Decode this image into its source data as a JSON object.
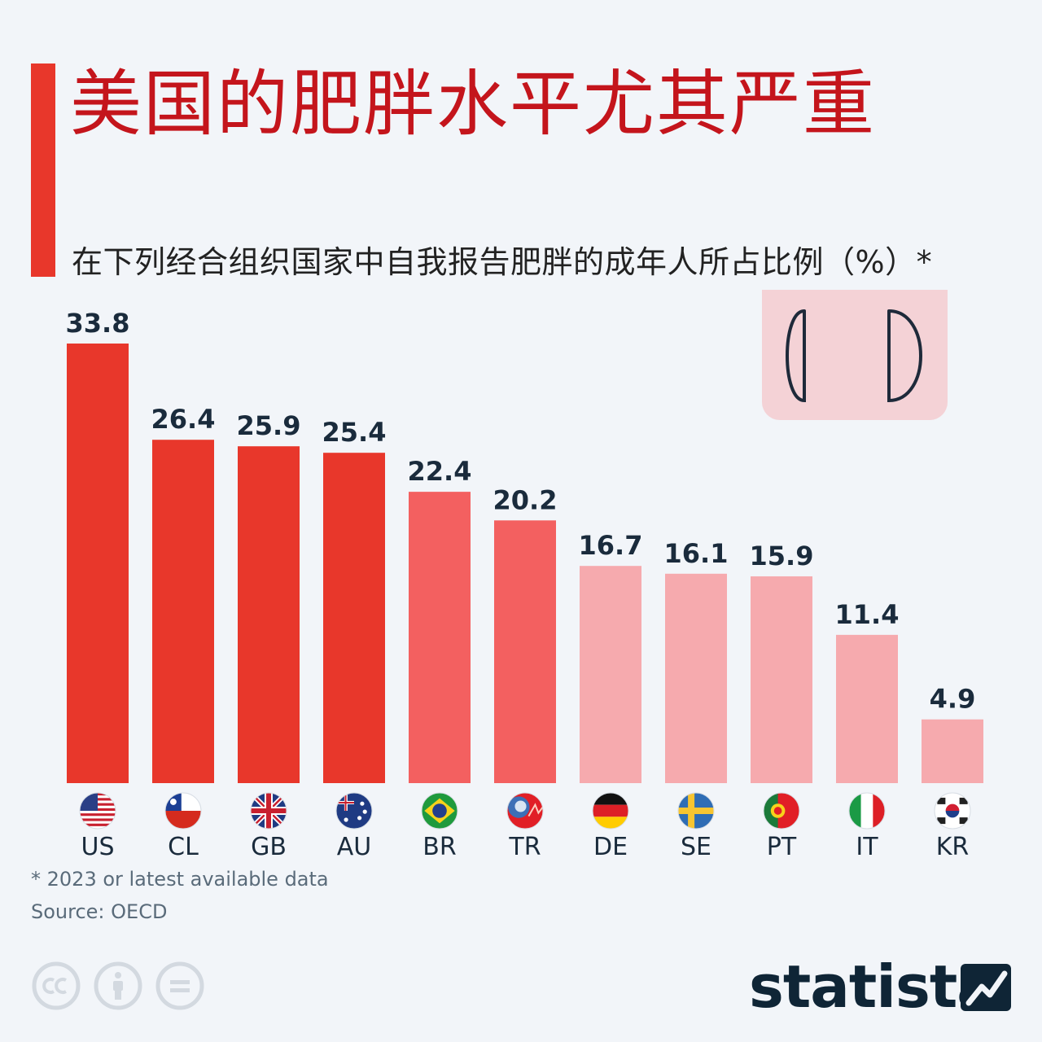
{
  "header": {
    "title": "美国的肥胖水平尤其严重",
    "subtitle": "在下列经合组织国家中自我报告肥胖的成年人所占比例（%）*"
  },
  "chart_data": {
    "type": "bar",
    "categories": [
      "US",
      "CL",
      "GB",
      "AU",
      "BR",
      "TR",
      "DE",
      "SE",
      "PT",
      "IT",
      "KR"
    ],
    "values": [
      33.8,
      26.4,
      25.9,
      25.4,
      22.4,
      20.2,
      16.7,
      16.1,
      15.9,
      11.4,
      4.9
    ],
    "value_labels": [
      "33.8",
      "26.4",
      "25.9",
      "25.4",
      "22.4",
      "20.2",
      "16.7",
      "16.1",
      "15.9",
      "11.4",
      "4.9"
    ],
    "ylim": [
      0,
      33.8
    ],
    "grid": false,
    "colors": [
      "#e8372b",
      "#e8372b",
      "#e8372b",
      "#e8372b",
      "#f36060",
      "#f36060",
      "#f6aaae",
      "#f6aaae",
      "#f6aaae",
      "#f6aaae",
      "#f6aaae"
    ],
    "flag_icons": [
      "us-flag-icon",
      "cl-flag-icon",
      "gb-flag-icon",
      "au-flag-icon",
      "br-flag-icon",
      "tr-flag-icon",
      "de-flag-icon",
      "se-flag-icon",
      "pt-flag-icon",
      "it-flag-icon",
      "kr-flag-icon"
    ]
  },
  "footer": {
    "footnote": "* 2023 or latest available data",
    "source": "Source: OECD",
    "brand": "statista",
    "license_icons": [
      "cc-icon",
      "attribution-icon",
      "no-derivatives-icon"
    ]
  },
  "colors": {
    "accent": "#e8372b",
    "title": "#c4151c",
    "label": "#1a2b3c",
    "background": "#f2f5f9"
  }
}
